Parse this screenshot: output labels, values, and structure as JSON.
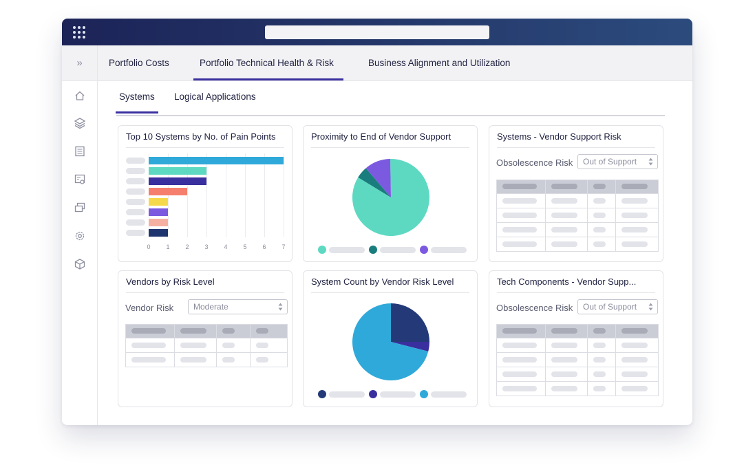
{
  "nav": {
    "tabs": [
      {
        "label": "Portfolio Costs",
        "active": false
      },
      {
        "label": "Portfolio Technical Health & Risk",
        "active": true
      },
      {
        "label": "Business Alignment and Utilization",
        "active": false
      }
    ],
    "subtabs": [
      {
        "label": "Systems",
        "active": true
      },
      {
        "label": "Logical Applications",
        "active": false
      }
    ],
    "sidebar_icons": [
      "home-icon",
      "layers-icon",
      "document-icon",
      "settings-screen-icon",
      "windows-icon",
      "gear-icon",
      "cube-icon"
    ],
    "expand_glyph": "»"
  },
  "cards": {
    "pain_points": {
      "title": "Top 10 Systems by No. of Pain Points"
    },
    "proximity": {
      "title": "Proximity to End of Vendor Support"
    },
    "systems_vendor": {
      "title": "Systems - Vendor Support Risk",
      "filter_label": "Obsolescence Risk",
      "filter_value": "Out of Support"
    },
    "vendors_risk": {
      "title": "Vendors by Risk Level",
      "filter_label": "Vendor Risk",
      "filter_value": "Moderate"
    },
    "system_count": {
      "title": "System Count by Vendor Risk Level"
    },
    "tech_components": {
      "title": "Tech Components - Vendor Supp...",
      "filter_label": "Obsolescence Risk",
      "filter_value": "Out of Support"
    }
  },
  "chart_data": [
    {
      "type": "bar",
      "orientation": "horizontal",
      "title": "Top 10 Systems by No. of Pain Points",
      "categories": [
        "",
        "",
        "",
        "",
        "",
        "",
        "",
        ""
      ],
      "values": [
        7,
        3,
        3,
        2,
        1,
        1,
        1,
        1
      ],
      "colors": [
        "#2fa9d9",
        "#5dd9c2",
        "#3a2f9e",
        "#f57f6c",
        "#f6d94a",
        "#7b5ae0",
        "#f6b0a2",
        "#1f3570"
      ],
      "xlim": [
        0,
        7
      ],
      "xticks": [
        "0",
        "1",
        "2",
        "3",
        "4",
        "5",
        "6",
        "7"
      ]
    },
    {
      "type": "pie",
      "title": "Proximity to End of Vendor Support",
      "values": [
        84,
        5,
        11
      ],
      "colors": [
        "#5dd9c2",
        "#1a7d7d",
        "#7b5ae0"
      ]
    },
    {
      "type": "pie",
      "title": "System Count by Vendor Risk Level",
      "values": [
        25,
        4,
        71
      ],
      "colors": [
        "#243a78",
        "#3a2f9e",
        "#2fa9d9"
      ]
    }
  ]
}
